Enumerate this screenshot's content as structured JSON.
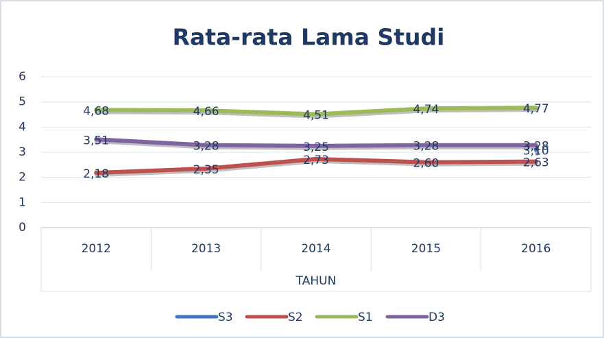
{
  "chart_data": {
    "type": "line",
    "title": "Rata-rata Lama Studi",
    "xlabel": "TAHUN",
    "categories": [
      "2012",
      "2013",
      "2014",
      "2015",
      "2016"
    ],
    "series": [
      {
        "name": "S3",
        "color": "#4472c4",
        "values": [
          null,
          null,
          null,
          null,
          3.1
        ],
        "value_labels": [
          null,
          null,
          null,
          null,
          "3,10"
        ]
      },
      {
        "name": "S2",
        "color": "#c0504d",
        "values": [
          2.18,
          2.35,
          2.73,
          2.6,
          2.63
        ],
        "value_labels": [
          "2,18",
          "2,35",
          "2,73",
          "2,60",
          "2,63"
        ]
      },
      {
        "name": "S1",
        "color": "#9bbb59",
        "values": [
          4.68,
          4.66,
          4.51,
          4.74,
          4.77
        ],
        "value_labels": [
          "4,68",
          "4,66",
          "4,51",
          "4,74",
          "4,77"
        ]
      },
      {
        "name": "D3",
        "color": "#8064a2",
        "values": [
          3.51,
          3.28,
          3.25,
          3.28,
          3.28
        ],
        "value_labels": [
          "3,51",
          "3,28",
          "3,25",
          "3,28",
          "3,28"
        ]
      }
    ],
    "ylim": [
      0,
      6
    ],
    "yticks": [
      0,
      1,
      2,
      3,
      4,
      5,
      6
    ],
    "grid": true,
    "legend": "bottom"
  }
}
